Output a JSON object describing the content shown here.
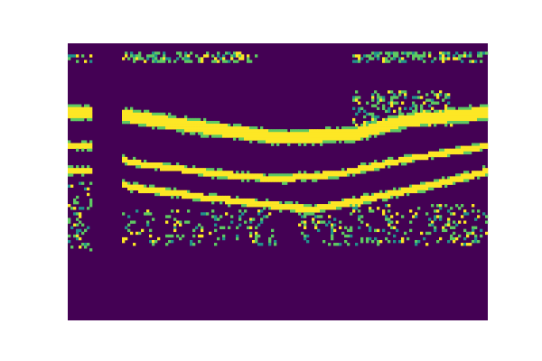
{
  "chart_data": {
    "type": "heatmap",
    "title": "",
    "xlabel": "",
    "ylabel": "",
    "axes_visible": false,
    "colormap": "viridis",
    "background_color": "#440154",
    "foreground_color": "#fde725",
    "colors": {
      "low": "#440154",
      "mid_low": "#3b528b",
      "mid": "#21918c",
      "mid_high": "#5ec962",
      "high": "#fde725"
    },
    "x_range": [
      0,
      1
    ],
    "y_range": [
      0,
      1
    ],
    "gap_band": {
      "x_start": 0.06,
      "x_end": 0.13
    },
    "bands": [
      {
        "name": "",
        "x": [
          0.0,
          0.06,
          0.13,
          0.3,
          0.5,
          0.68,
          0.8,
          1.0
        ],
        "y": [
          0.75,
          0.75,
          0.74,
          0.7,
          0.66,
          0.67,
          0.72,
          0.75
        ],
        "thickness": 0.055,
        "intensity": 1.0
      },
      {
        "name": "",
        "x": [
          0.0,
          0.06,
          0.15,
          0.35,
          0.5,
          0.65,
          0.8,
          1.0
        ],
        "y": [
          0.63,
          0.63,
          0.57,
          0.53,
          0.51,
          0.53,
          0.58,
          0.63
        ],
        "thickness": 0.028,
        "intensity": 0.95
      },
      {
        "name": "",
        "x": [
          0.0,
          0.06,
          0.15,
          0.35,
          0.58,
          0.75,
          0.9,
          1.0
        ],
        "y": [
          0.54,
          0.54,
          0.48,
          0.44,
          0.4,
          0.45,
          0.5,
          0.54
        ],
        "thickness": 0.03,
        "intensity": 0.95
      }
    ],
    "noise_regions": [
      {
        "x": [
          0.13,
          0.45
        ],
        "y": [
          0.93,
          0.97
        ],
        "density": 0.45
      },
      {
        "x": [
          0.68,
          1.0
        ],
        "y": [
          0.93,
          0.97
        ],
        "density": 0.45
      },
      {
        "x": [
          0.0,
          0.06
        ],
        "y": [
          0.93,
          0.96
        ],
        "density": 0.3
      },
      {
        "x": [
          0.0,
          0.06
        ],
        "y": [
          0.25,
          0.5
        ],
        "density": 0.25
      },
      {
        "x": [
          0.13,
          0.5
        ],
        "y": [
          0.27,
          0.4
        ],
        "density": 0.18
      },
      {
        "x": [
          0.55,
          1.0
        ],
        "y": [
          0.27,
          0.42
        ],
        "density": 0.22
      },
      {
        "x": [
          0.68,
          0.92
        ],
        "y": [
          0.7,
          0.83
        ],
        "density": 0.3
      }
    ]
  }
}
